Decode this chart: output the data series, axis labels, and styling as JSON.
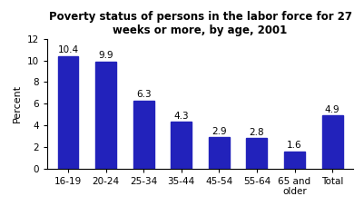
{
  "title": "Poverty status of persons in the labor force for 27\nweeks or more, by age, 2001",
  "categories": [
    "16-19",
    "20-24",
    "25-34",
    "35-44",
    "45-54",
    "55-64",
    "65 and\nolder",
    "Total"
  ],
  "values": [
    10.4,
    9.9,
    6.3,
    4.3,
    2.9,
    2.8,
    1.6,
    4.9
  ],
  "bar_color": "#2222bb",
  "ylabel": "Percent",
  "ylim": [
    0,
    12
  ],
  "yticks": [
    0,
    2,
    4,
    6,
    8,
    10,
    12
  ],
  "title_fontsize": 8.5,
  "label_fontsize": 8,
  "tick_fontsize": 7.5,
  "bar_label_fontsize": 7.5,
  "figsize": [
    4.01,
    2.38
  ],
  "dpi": 100
}
